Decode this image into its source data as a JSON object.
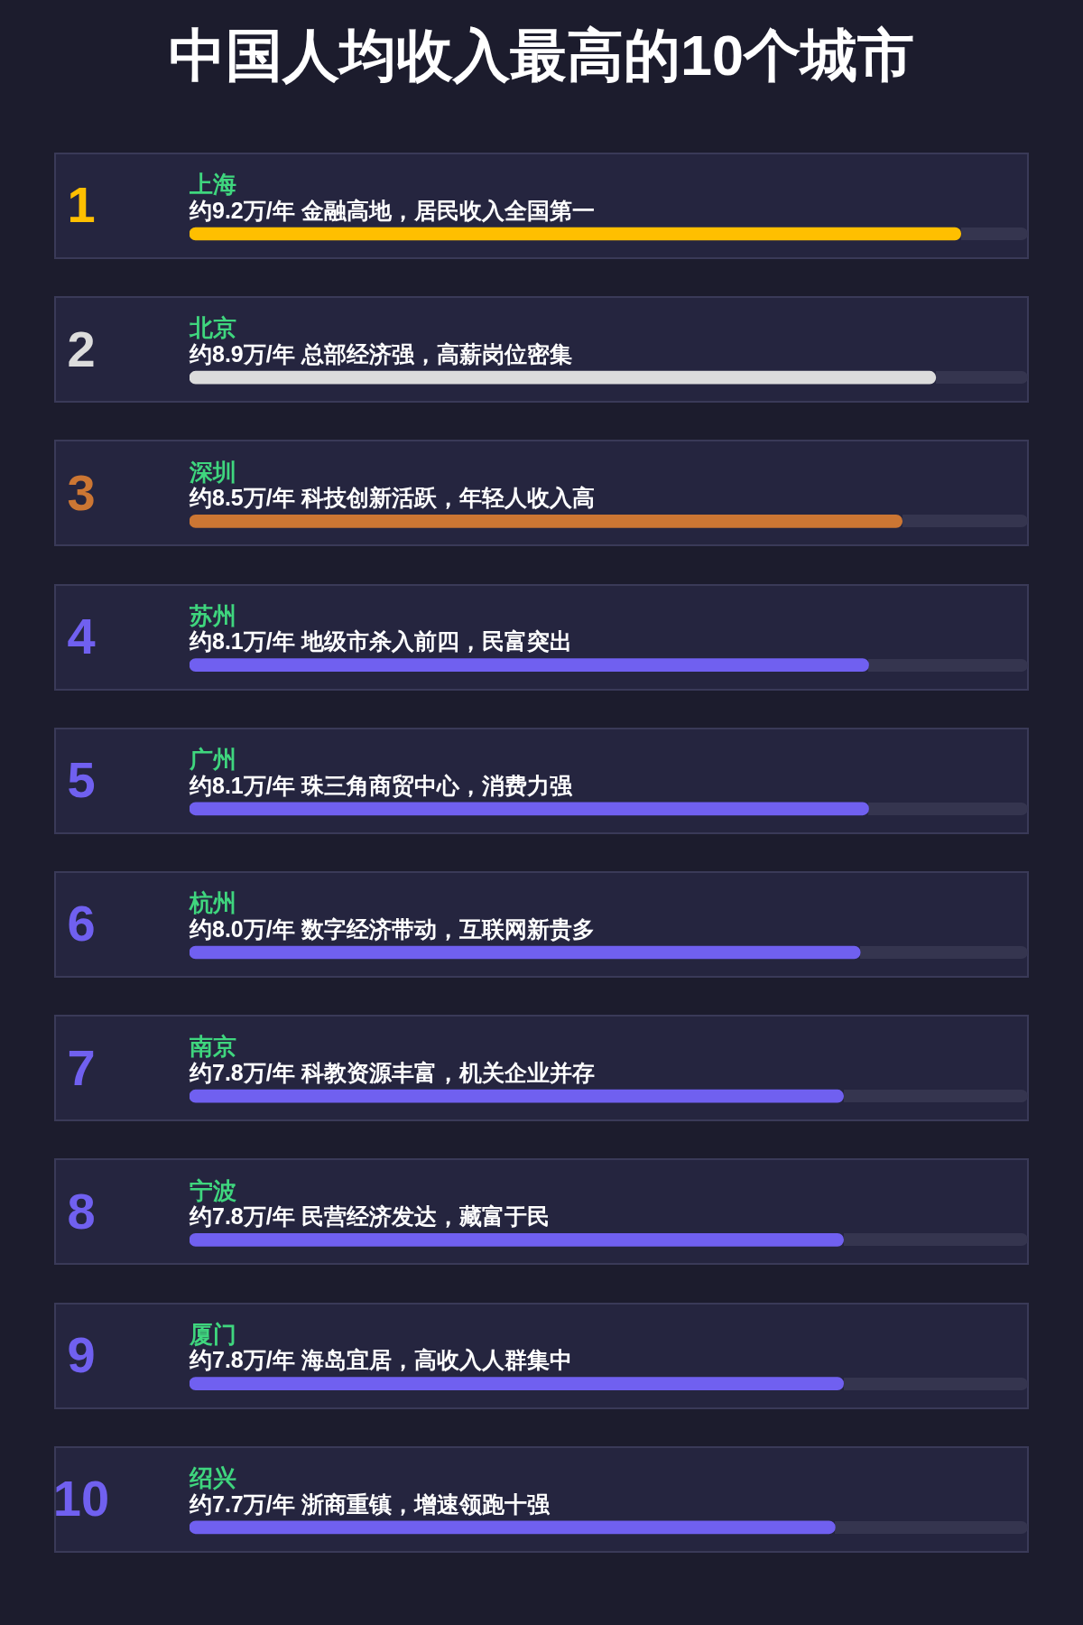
{
  "chart_data": {
    "type": "bar",
    "orientation": "horizontal",
    "title": "中国人均收入最高的10个城市",
    "categories": [
      "上海",
      "北京",
      "深圳",
      "苏州",
      "广州",
      "杭州",
      "南京",
      "宁波",
      "厦门",
      "绍兴"
    ],
    "values": [
      9.2,
      8.9,
      8.5,
      8.1,
      8.1,
      8.0,
      7.8,
      7.8,
      7.8,
      7.7
    ],
    "colors": [
      "#ffbf00",
      "#dcdcdc",
      "#cc7633",
      "#7060f0",
      "#7060f0",
      "#7060f0",
      "#7060f0",
      "#7060f0",
      "#7060f0",
      "#7060f0"
    ],
    "value_labels": [
      "约9.2万/年 金融高地，居民收入全国第一",
      "约8.9万/年 总部经济强，高薪岗位密集",
      "约8.5万/年 科技创新活跃，年轻人收入高",
      "约8.1万/年 地级市杀入前四，民富突出",
      "约8.1万/年 珠三角商贸中心，消费力强",
      "约8.0万/年 数字经济带动，互联网新贵多",
      "约7.8万/年 科教资源丰富，机关企业并存",
      "约7.8万/年 民营经济发达，藏富于民",
      "约7.8万/年 海岛宜居，高收入人群集中",
      "约7.7万/年 浙商重镇，增速领跑十强"
    ],
    "annotations": [
      "1",
      "2",
      "3",
      "4",
      "5",
      "6",
      "7",
      "8",
      "9",
      "10"
    ],
    "tick_labels": "y"
  }
}
